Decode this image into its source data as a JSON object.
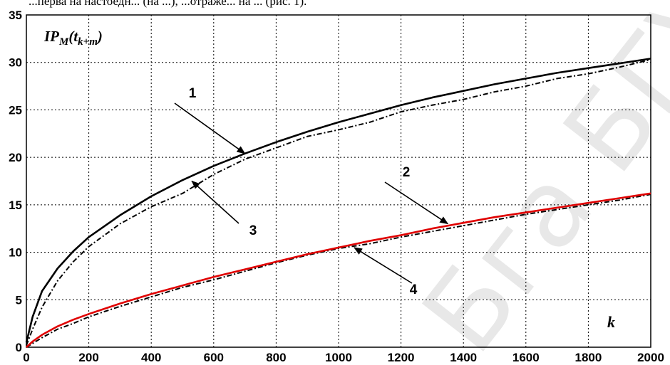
{
  "header_text": "...перва на настоедн... (на ...), ...отраже... на ... (рис. 1).",
  "watermark": "Бга БГУИ",
  "chart_data": {
    "type": "line",
    "title": "",
    "xlabel": "k",
    "ylabel": {
      "main": "IP",
      "sub1": "M",
      "paren_open": "(t",
      "sub2": "k+m",
      "paren_close": ")"
    },
    "xlim": [
      0,
      2000
    ],
    "ylim": [
      0,
      35
    ],
    "grid": true,
    "x_ticks": [
      "0",
      "200",
      "400",
      "600",
      "800",
      "1000",
      "1200",
      "1400",
      "1600",
      "1800",
      "2000"
    ],
    "y_ticks": [
      "0",
      "5",
      "10",
      "15",
      "20",
      "25",
      "30",
      "35"
    ],
    "x_tick_values": [
      0,
      200,
      400,
      600,
      800,
      1000,
      1200,
      1400,
      1600,
      1800,
      2000
    ],
    "y_tick_values": [
      0,
      5,
      10,
      15,
      20,
      25,
      30,
      35
    ],
    "x": [
      0,
      20,
      50,
      100,
      150,
      200,
      300,
      400,
      500,
      600,
      700,
      800,
      900,
      1000,
      1100,
      1200,
      1300,
      1400,
      1500,
      1600,
      1700,
      1800,
      1900,
      2000
    ],
    "series": [
      {
        "name": "1",
        "color": "#000000",
        "style": "solid",
        "values": [
          0.5,
          3.2,
          5.9,
          8.3,
          10.1,
          11.6,
          13.9,
          15.9,
          17.6,
          19.1,
          20.4,
          21.6,
          22.7,
          23.7,
          24.6,
          25.5,
          26.3,
          27.0,
          27.7,
          28.3,
          28.9,
          29.4,
          29.9,
          30.4
        ]
      },
      {
        "name": "2",
        "color": "#e00000",
        "style": "solid",
        "values": [
          0.0,
          0.6,
          1.3,
          2.2,
          2.9,
          3.5,
          4.6,
          5.6,
          6.5,
          7.4,
          8.2,
          9.0,
          9.8,
          10.5,
          11.2,
          11.8,
          12.5,
          13.1,
          13.7,
          14.2,
          14.7,
          15.2,
          15.7,
          16.2
        ]
      },
      {
        "name": "3",
        "color": "#000000",
        "style": "dashdot",
        "values": [
          0.2,
          1.9,
          4.2,
          7.0,
          9.0,
          10.6,
          13.0,
          14.8,
          16.2,
          18.2,
          19.8,
          21.0,
          22.2,
          22.9,
          23.7,
          24.8,
          25.5,
          26.1,
          26.9,
          27.5,
          28.3,
          28.8,
          29.5,
          30.3
        ]
      },
      {
        "name": "4",
        "color": "#000000",
        "style": "dashdot",
        "values": [
          0.0,
          0.4,
          1.0,
          1.9,
          2.5,
          3.2,
          4.3,
          5.3,
          6.3,
          7.1,
          8.0,
          8.9,
          9.7,
          10.4,
          10.9,
          11.6,
          12.2,
          12.8,
          13.4,
          14.0,
          14.5,
          15.0,
          15.5,
          16.1
        ]
      }
    ],
    "annotations": [
      {
        "label": "1",
        "arrow_to": [
          700,
          20.4
        ]
      },
      {
        "label": "2",
        "arrow_to": [
          1350,
          13.0
        ]
      },
      {
        "label": "3",
        "arrow_to": [
          530,
          17.5
        ]
      },
      {
        "label": "4",
        "arrow_to": [
          1050,
          10.5
        ]
      }
    ]
  }
}
